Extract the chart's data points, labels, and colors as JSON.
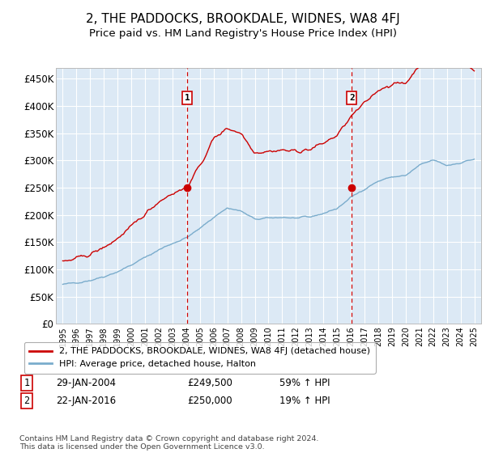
{
  "title": "2, THE PADDOCKS, BROOKDALE, WIDNES, WA8 4FJ",
  "subtitle": "Price paid vs. HM Land Registry's House Price Index (HPI)",
  "title_fontsize": 11,
  "subtitle_fontsize": 9.5,
  "ylabel_ticks": [
    "£0",
    "£50K",
    "£100K",
    "£150K",
    "£200K",
    "£250K",
    "£300K",
    "£350K",
    "£400K",
    "£450K"
  ],
  "ylim": [
    0,
    470000
  ],
  "xlim_start": 1994.5,
  "xlim_end": 2025.5,
  "xticks": [
    1995,
    1996,
    1997,
    1998,
    1999,
    2000,
    2001,
    2002,
    2003,
    2004,
    2005,
    2006,
    2007,
    2008,
    2009,
    2010,
    2011,
    2012,
    2013,
    2014,
    2015,
    2016,
    2017,
    2018,
    2019,
    2020,
    2021,
    2022,
    2023,
    2024,
    2025
  ],
  "sale1_x": 2004.08,
  "sale1_y": 249500,
  "sale1_label": "1",
  "sale1_date": "29-JAN-2004",
  "sale1_price": "£249,500",
  "sale1_hpi": "59% ↑ HPI",
  "sale2_x": 2016.07,
  "sale2_y": 250000,
  "sale2_label": "2",
  "sale2_date": "22-JAN-2016",
  "sale2_price": "£250,000",
  "sale2_hpi": "19% ↑ HPI",
  "line_color_red": "#cc0000",
  "line_color_blue": "#7aaccc",
  "background_color": "#dce9f5",
  "grid_color": "#ffffff",
  "legend_label_red": "2, THE PADDOCKS, BROOKDALE, WIDNES, WA8 4FJ (detached house)",
  "legend_label_blue": "HPI: Average price, detached house, Halton",
  "footer": "Contains HM Land Registry data © Crown copyright and database right 2024.\nThis data is licensed under the Open Government Licence v3.0.",
  "hpi_x": [
    1995,
    1996,
    1997,
    1998,
    1999,
    2000,
    2001,
    2002,
    2003,
    2004,
    2005,
    2006,
    2007,
    2008,
    2009,
    2010,
    2011,
    2012,
    2013,
    2014,
    2015,
    2016,
    2017,
    2018,
    2019,
    2020,
    2021,
    2022,
    2023,
    2024,
    2025
  ],
  "hpi_y": [
    72000,
    76000,
    80000,
    87000,
    96000,
    108000,
    122000,
    136000,
    148000,
    158000,
    175000,
    196000,
    213000,
    207000,
    192000,
    194000,
    196000,
    194000,
    196000,
    203000,
    212000,
    232000,
    248000,
    262000,
    270000,
    272000,
    291000,
    301000,
    291000,
    296000,
    303000
  ],
  "prop_x": [
    1995,
    1996,
    1997,
    1998,
    1999,
    2000,
    2001,
    2002,
    2003,
    2004,
    2005,
    2006,
    2007,
    2008,
    2009,
    2010,
    2011,
    2012,
    2013,
    2014,
    2015,
    2016,
    2017,
    2018,
    2019,
    2020,
    2021,
    2022,
    2023,
    2024,
    2025
  ],
  "prop_y": [
    113000,
    120000,
    128000,
    140000,
    157000,
    178000,
    202000,
    225000,
    240000,
    249500,
    290000,
    340000,
    360000,
    350000,
    315000,
    317000,
    319000,
    317000,
    320000,
    332000,
    346000,
    380000,
    405000,
    430000,
    440000,
    442000,
    475000,
    490000,
    475000,
    480000,
    465000
  ],
  "noise_seed": 42
}
